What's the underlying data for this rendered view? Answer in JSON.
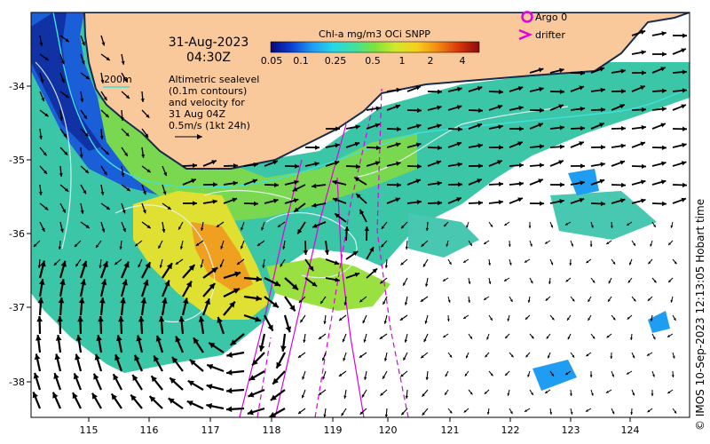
{
  "title": {
    "date": "31-Aug-2023",
    "time": "04:30Z"
  },
  "colorbar": {
    "title": "Chl-a mg/m3 OCi SNPP",
    "ticks": [
      "0.05",
      "0.1",
      "0.25",
      "0.5",
      "1",
      "2",
      "4"
    ],
    "colors": [
      "#08087a",
      "#0a3fd0",
      "#1f9df2",
      "#28d6e8",
      "#40e0a0",
      "#7fe23c",
      "#d2e82c",
      "#f6d01c",
      "#f28a12",
      "#d8380a",
      "#8b0a10"
    ]
  },
  "contour_label": "200m",
  "altimetry_note": [
    "Altimetric sealevel",
    "(0.1m contours)",
    "and velocity for",
    "31 Aug 04Z",
    "0.5m/s (1kt 24h)"
  ],
  "legend": {
    "argo": "Argo 0",
    "drifter": "drifter"
  },
  "x_ticks": [
    "115",
    "116",
    "117",
    "118",
    "119",
    "120",
    "121",
    "122",
    "123",
    "124"
  ],
  "y_ticks": [
    "-34",
    "-35",
    "-36",
    "-37",
    "-38"
  ],
  "credit": "© IMOS 10-Sep-2023 12:13:05 Hobart time",
  "colors": {
    "land": "#f9c89b",
    "argo": "#e000e0",
    "drifter": "#e000e0",
    "contour_200m": "#40e0e0",
    "sealevel_contour": "#e8f0f0"
  }
}
